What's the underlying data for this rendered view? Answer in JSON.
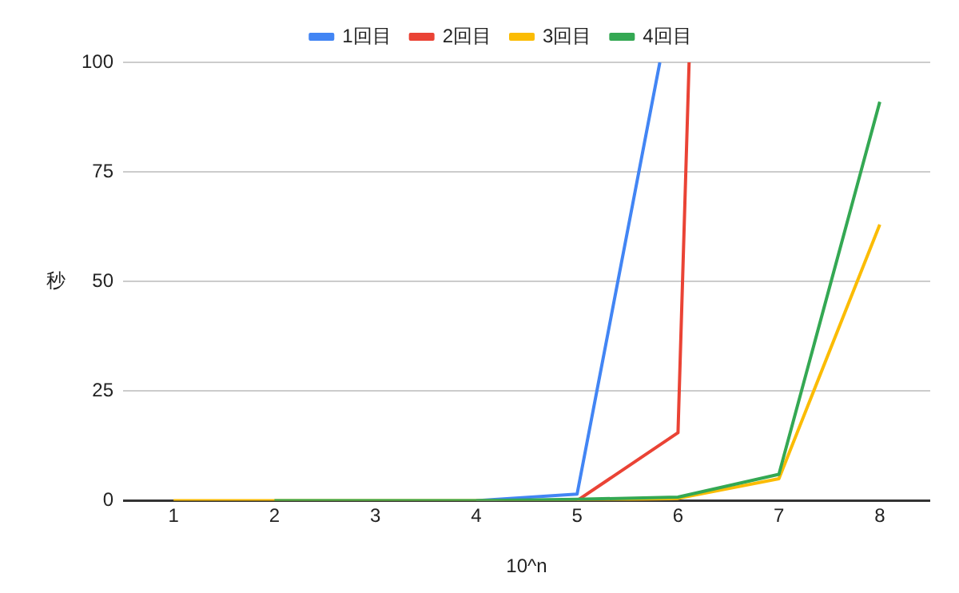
{
  "chart_data": {
    "type": "line",
    "xlabel": "10^n",
    "ylabel": "秒",
    "xlim": [
      0.5,
      8.5
    ],
    "xticks": [
      1,
      2,
      3,
      4,
      5,
      6,
      7,
      8
    ],
    "ylim": [
      0,
      100
    ],
    "yticks": [
      0,
      25,
      50,
      75,
      100
    ],
    "grid": "y",
    "legend": "top",
    "marker": "none",
    "line_style": "solid",
    "series": [
      {
        "name": "1回目",
        "color": "#4285f4",
        "x": [
          4,
          5,
          5.82
        ],
        "values": [
          0,
          1.5,
          100
        ]
      },
      {
        "name": "2回目",
        "color": "#ea4335",
        "x": [
          5,
          6,
          6.11
        ],
        "values": [
          0,
          15.5,
          100
        ]
      },
      {
        "name": "3回目",
        "color": "#fbbc04",
        "x": [
          1,
          2,
          5,
          6,
          7,
          8
        ],
        "values": [
          0,
          0,
          0,
          0.5,
          5,
          63
        ]
      },
      {
        "name": "4回目",
        "color": "#34a853",
        "x": [
          2,
          3,
          4,
          5,
          6,
          7,
          8
        ],
        "values": [
          0,
          0,
          0,
          0.3,
          0.8,
          6,
          91
        ]
      }
    ]
  }
}
